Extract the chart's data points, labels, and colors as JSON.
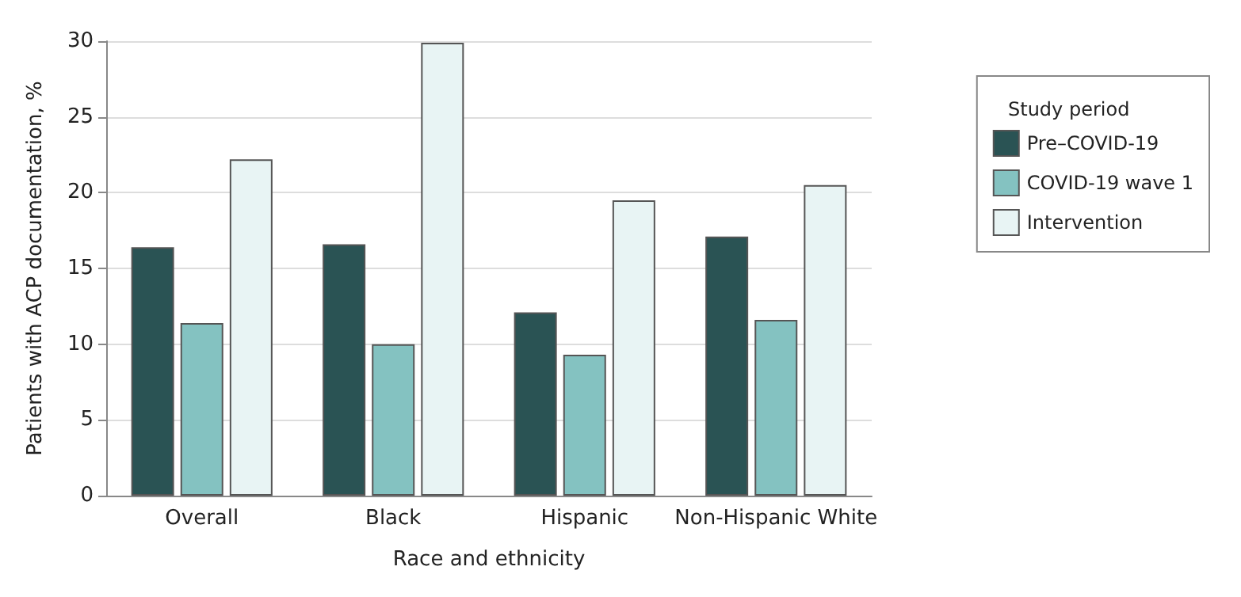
{
  "chart_data": {
    "type": "bar",
    "xlabel": "Race and ethnicity",
    "ylabel": "Patients with ACP documentation, %",
    "legend_title": "Study period",
    "categories": [
      "Overall",
      "Black",
      "Hispanic",
      "Non-Hispanic White"
    ],
    "series": [
      {
        "name": "Pre–COVID-19",
        "color": "#2a5354",
        "values": [
          16.4,
          16.6,
          12.1,
          17.1
        ]
      },
      {
        "name": "COVID-19 wave 1",
        "color": "#84c2c1",
        "values": [
          11.4,
          10.0,
          9.3,
          11.6
        ]
      },
      {
        "name": "Intervention",
        "color": "#e8f4f4",
        "values": [
          22.2,
          29.9,
          19.5,
          20.5
        ]
      }
    ],
    "ylim": [
      0,
      30
    ],
    "yticks": [
      0,
      5,
      10,
      15,
      20,
      25,
      30
    ],
    "grid": "y",
    "legend": "top right"
  }
}
